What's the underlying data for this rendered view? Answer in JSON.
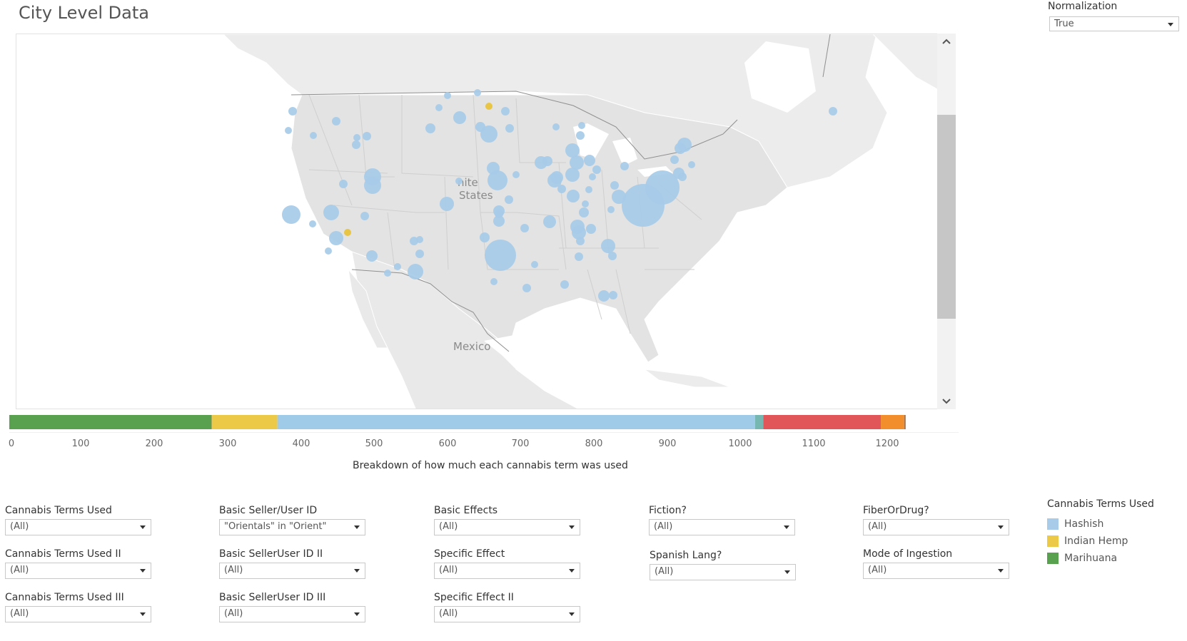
{
  "title": "City Level Data",
  "normalization": {
    "label": "Normalization",
    "value": "True"
  },
  "map": {
    "labels": {
      "country": "nite\nStates",
      "country_line1": "nite",
      "country_line2": "States",
      "mexico": "Mexico"
    },
    "bubble_color": "#a7cbe8",
    "hemp_color": "#e8c33c"
  },
  "breakdown": {
    "title": "Breakdown of how much each cannabis term was used",
    "ticks": [
      "0",
      "100",
      "200",
      "300",
      "400",
      "500",
      "600",
      "700",
      "800",
      "900",
      "1000",
      "1100",
      "1200"
    ],
    "segments": [
      {
        "color": "#59a14f",
        "value": 276
      },
      {
        "color": "#6b8f63",
        "value": 1
      },
      {
        "color": "#edc948",
        "value": 90
      },
      {
        "color": "#a0cbe8",
        "value": 654
      },
      {
        "color": "#76b7b2",
        "value": 11
      },
      {
        "color": "#e15759",
        "value": 161
      },
      {
        "color": "#f28e2b",
        "value": 32
      },
      {
        "color": "#9c755f",
        "value": 2
      }
    ]
  },
  "filters": [
    {
      "label": "Cannabis Terms Used",
      "value": "(All)"
    },
    {
      "label": "Cannabis Terms Used II",
      "value": "(All)"
    },
    {
      "label": "Cannabis Terms Used III",
      "value": "(All)"
    },
    {
      "label": "Basic Seller/User ID",
      "value": "\"Orientals\" in \"Orient\""
    },
    {
      "label": "Basic SellerUser ID II",
      "value": "(All)"
    },
    {
      "label": "Basic SellerUser ID III",
      "value": "(All)"
    },
    {
      "label": "Basic Effects",
      "value": "(All)"
    },
    {
      "label": "Specific Effect",
      "value": "(All)"
    },
    {
      "label": "Specific Effect II",
      "value": "(All)"
    },
    {
      "label": "Fiction?",
      "value": "(All)"
    },
    {
      "label": "Spanish Lang?",
      "value": "(All)"
    },
    {
      "label": "FiberOrDrug?",
      "value": "(All)"
    },
    {
      "label": "Mode of Ingestion",
      "value": "(All)"
    }
  ],
  "legend": {
    "title": "Cannabis Terms Used",
    "items": [
      {
        "label": "Hashish",
        "color": "#a7cbe8"
      },
      {
        "label": "Indian Hemp",
        "color": "#edc948"
      },
      {
        "label": "Marihuana",
        "color": "#59a14f"
      }
    ]
  }
}
